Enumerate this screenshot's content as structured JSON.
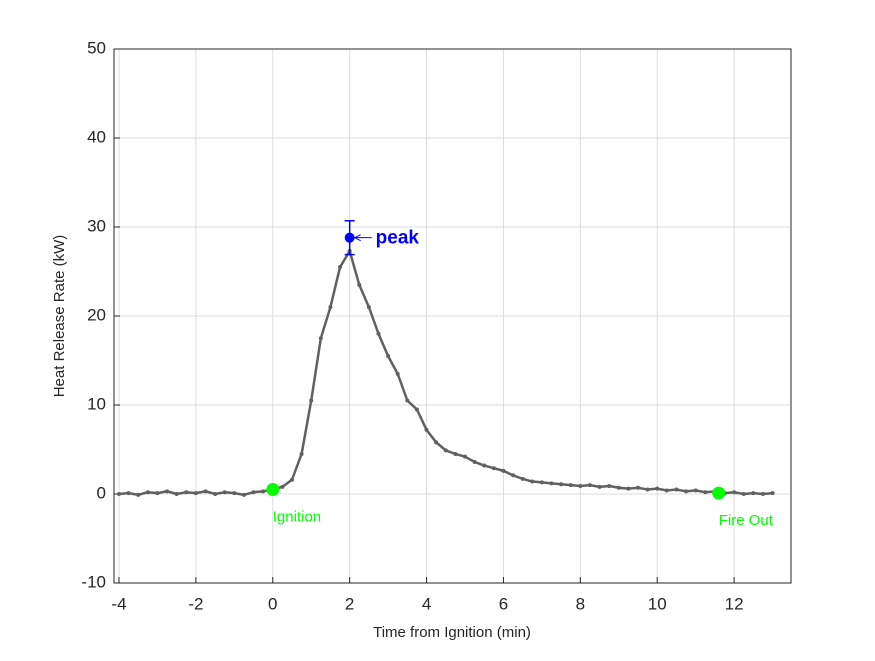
{
  "chart_data": {
    "type": "line",
    "xlabel": "Time from Ignition (min)",
    "ylabel": "Heat Release Rate (kW)",
    "x": [
      -4,
      -3.75,
      -3.5,
      -3.25,
      -3,
      -2.75,
      -2.5,
      -2.25,
      -2,
      -1.75,
      -1.5,
      -1.25,
      -1,
      -0.75,
      -0.5,
      -0.25,
      0,
      0.25,
      0.5,
      0.75,
      1,
      1.25,
      1.5,
      1.75,
      2,
      2.25,
      2.5,
      2.75,
      3,
      3.25,
      3.5,
      3.75,
      4,
      4.25,
      4.5,
      4.75,
      5,
      5.25,
      5.5,
      5.75,
      6,
      6.25,
      6.5,
      6.75,
      7,
      7.25,
      7.5,
      7.75,
      8,
      8.25,
      8.5,
      8.75,
      9,
      9.25,
      9.5,
      9.75,
      10,
      10.25,
      10.5,
      10.75,
      11,
      11.25,
      11.5,
      11.75,
      12,
      12.25,
      12.5,
      12.75,
      13
    ],
    "series": [
      {
        "color": "#606060",
        "values": [
          0,
          0.1,
          -0.1,
          0.2,
          0.1,
          0.3,
          0,
          0.2,
          0.1,
          0.3,
          0,
          0.2,
          0.1,
          -0.1,
          0.2,
          0.3,
          0.5,
          0.8,
          1.6,
          4.5,
          10.5,
          17.5,
          21,
          25.5,
          27.3,
          23.5,
          21,
          18,
          15.5,
          13.5,
          10.5,
          9.5,
          7.2,
          5.8,
          4.9,
          4.5,
          4.2,
          3.6,
          3.2,
          2.9,
          2.6,
          2.1,
          1.7,
          1.4,
          1.3,
          1.2,
          1.1,
          1,
          0.9,
          1,
          0.8,
          0.9,
          0.7,
          0.6,
          0.7,
          0.5,
          0.6,
          0.4,
          0.5,
          0.3,
          0.4,
          0.2,
          0.3,
          0.1,
          0.2,
          0,
          0.1,
          0,
          0.1
        ]
      }
    ],
    "events": [
      {
        "label": "Ignition",
        "x": 0,
        "y": 0.5,
        "color": "#00ff00"
      },
      {
        "label": "Fire Out",
        "x": 11.6,
        "y": 0.1,
        "color": "#00ff00"
      }
    ],
    "peak": {
      "label": "peak",
      "x": 2,
      "y": 28.8,
      "error": 1.9,
      "color": "#0000ff"
    },
    "xlim": [
      -4.13,
      13.48
    ],
    "ylim": [
      -10,
      50
    ],
    "xticks": [
      -4,
      -2,
      0,
      2,
      4,
      6,
      8,
      10,
      12
    ],
    "yticks": [
      -10,
      0,
      10,
      20,
      30,
      40,
      50
    ],
    "grid": true
  }
}
